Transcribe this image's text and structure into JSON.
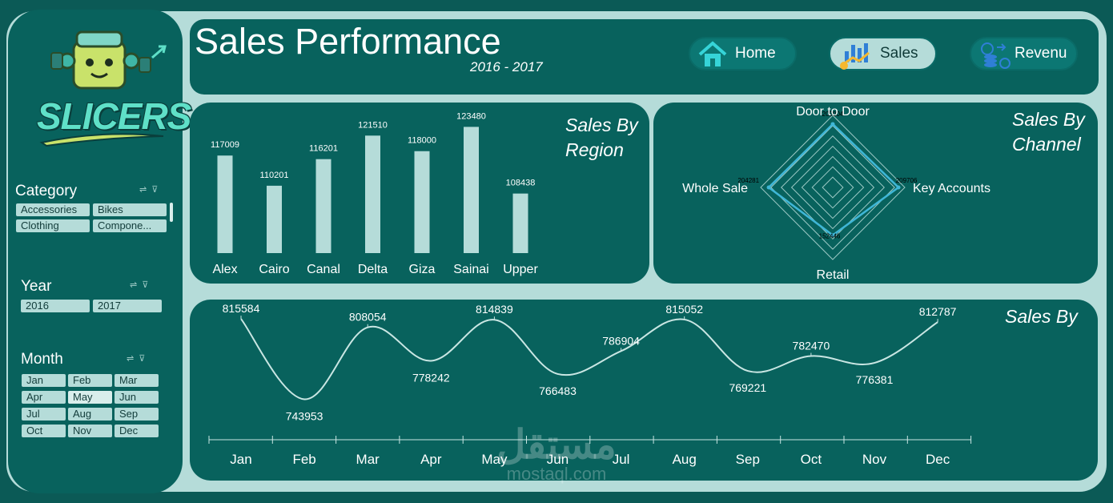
{
  "logo": {
    "text": "SLICERS"
  },
  "header": {
    "title": "Sales Performance",
    "subtitle": "2016 - 2017"
  },
  "nav": [
    {
      "label": "Home",
      "icon": "home-icon",
      "active": false
    },
    {
      "label": "Sales",
      "icon": "bar-chart-icon",
      "active": true
    },
    {
      "label": "Revenu",
      "icon": "coins-icon",
      "active": false
    }
  ],
  "slicers": {
    "category": {
      "title": "Category",
      "items": [
        "Accessories",
        "Bikes",
        "Clothing",
        "Compone..."
      ]
    },
    "year": {
      "title": "Year",
      "items": [
        "2016",
        "2017"
      ]
    },
    "month": {
      "title": "Month",
      "items": [
        "Jan",
        "Feb",
        "Mar",
        "Apr",
        "May",
        "Jun",
        "Jul",
        "Aug",
        "Sep",
        "Oct",
        "Nov",
        "Dec"
      ],
      "selected": "May"
    }
  },
  "colors": {
    "background": "#0b5a56",
    "panel": "#08625d",
    "frame": "#b5dcd9",
    "bar": "#b5dcd9",
    "radar_line": "#3fb6d6"
  },
  "chart_data": [
    {
      "type": "bar",
      "title": "Sales By Region",
      "categories": [
        "Alex",
        "Cairo",
        "Canal",
        "Delta",
        "Giza",
        "Sainai",
        "Upper"
      ],
      "values": [
        117009,
        110201,
        116201,
        121510,
        118000,
        123480,
        108438
      ],
      "ylim": [
        95000,
        125000
      ]
    },
    {
      "type": "radar",
      "title": "Sales By Channel",
      "categories": [
        "Door to Door",
        "Key Accounts",
        "Retail",
        "Whole Sale"
      ],
      "value_labels": [
        "202004",
        "209706",
        "152446",
        "204281"
      ],
      "values": [
        202004,
        209706,
        152446,
        204281
      ],
      "rmax": 230000
    },
    {
      "type": "line",
      "title": "Sales By",
      "categories": [
        "Jan",
        "Feb",
        "Mar",
        "Apr",
        "May",
        "Jun",
        "Jul",
        "Aug",
        "Sep",
        "Oct",
        "Nov",
        "Dec"
      ],
      "values": [
        815584,
        743953,
        808054,
        778242,
        814839,
        766483,
        786904,
        815052,
        769221,
        782470,
        776381,
        812787
      ],
      "ylim": [
        740000,
        820000
      ]
    }
  ],
  "watermark": {
    "arabic": "مستقل",
    "latin": "mostaql.com"
  }
}
